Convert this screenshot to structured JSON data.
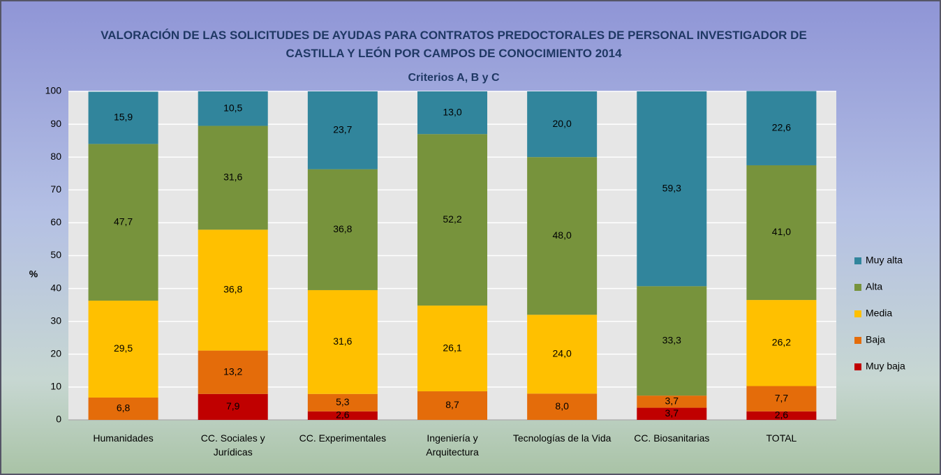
{
  "chart_data": {
    "type": "stacked_bar",
    "title": "VALORACIÓN DE LAS SOLICITUDES DE AYUDAS PARA CONTRATOS PREDOCTORALES DE PERSONAL INVESTIGADOR DE CASTILLA Y LEÓN POR CAMPOS DE CONOCIMIENTO 2014",
    "subtitle": "Criterios A, B y C",
    "y_label": "%",
    "categories": [
      "Humanidades",
      "CC. Sociales y Jurídicas",
      "CC. Experimentales",
      "Ingeniería y Arquitectura",
      "Tecnologías de la Vida",
      "CC. Biosanitarias",
      "TOTAL"
    ],
    "series": [
      {
        "name": "Muy baja",
        "color": "#c00000",
        "values": [
          null,
          7.9,
          2.6,
          null,
          null,
          3.7,
          2.6
        ],
        "value_labels": [
          null,
          "7,9",
          "2,6",
          null,
          null,
          "3,7",
          "2,6"
        ]
      },
      {
        "name": "Baja",
        "color": "#e46c0a",
        "values": [
          6.8,
          13.2,
          5.3,
          8.7,
          8.0,
          3.7,
          7.7
        ],
        "value_labels": [
          "6,8",
          "13,2",
          "5,3",
          "8,7",
          "8,0",
          "3,7",
          "7,7"
        ]
      },
      {
        "name": "Media",
        "color": "#ffc000",
        "values": [
          29.5,
          36.8,
          31.6,
          26.1,
          24.0,
          null,
          26.2
        ],
        "value_labels": [
          "29,5",
          "36,8",
          "31,6",
          "26,1",
          "24,0",
          null,
          "26,2"
        ]
      },
      {
        "name": "Alta",
        "color": "#77933c",
        "values": [
          47.7,
          31.6,
          36.8,
          52.2,
          48.0,
          33.3,
          41.0
        ],
        "value_labels": [
          "47,7",
          "31,6",
          "36,8",
          "52,2",
          "48,0",
          "33,3",
          "41,0"
        ]
      },
      {
        "name": "Muy alta",
        "color": "#31859c",
        "values": [
          15.9,
          10.5,
          23.7,
          13.0,
          20.0,
          59.3,
          22.6
        ],
        "value_labels": [
          "15,9",
          "10,5",
          "23,7",
          "13,0",
          "20,0",
          "59,3",
          "22,6"
        ]
      }
    ],
    "ylim": [
      0,
      100
    ],
    "yticks": [
      0,
      10,
      20,
      30,
      40,
      50,
      60,
      70,
      80,
      90,
      100
    ],
    "grid": true,
    "legend": "right"
  }
}
